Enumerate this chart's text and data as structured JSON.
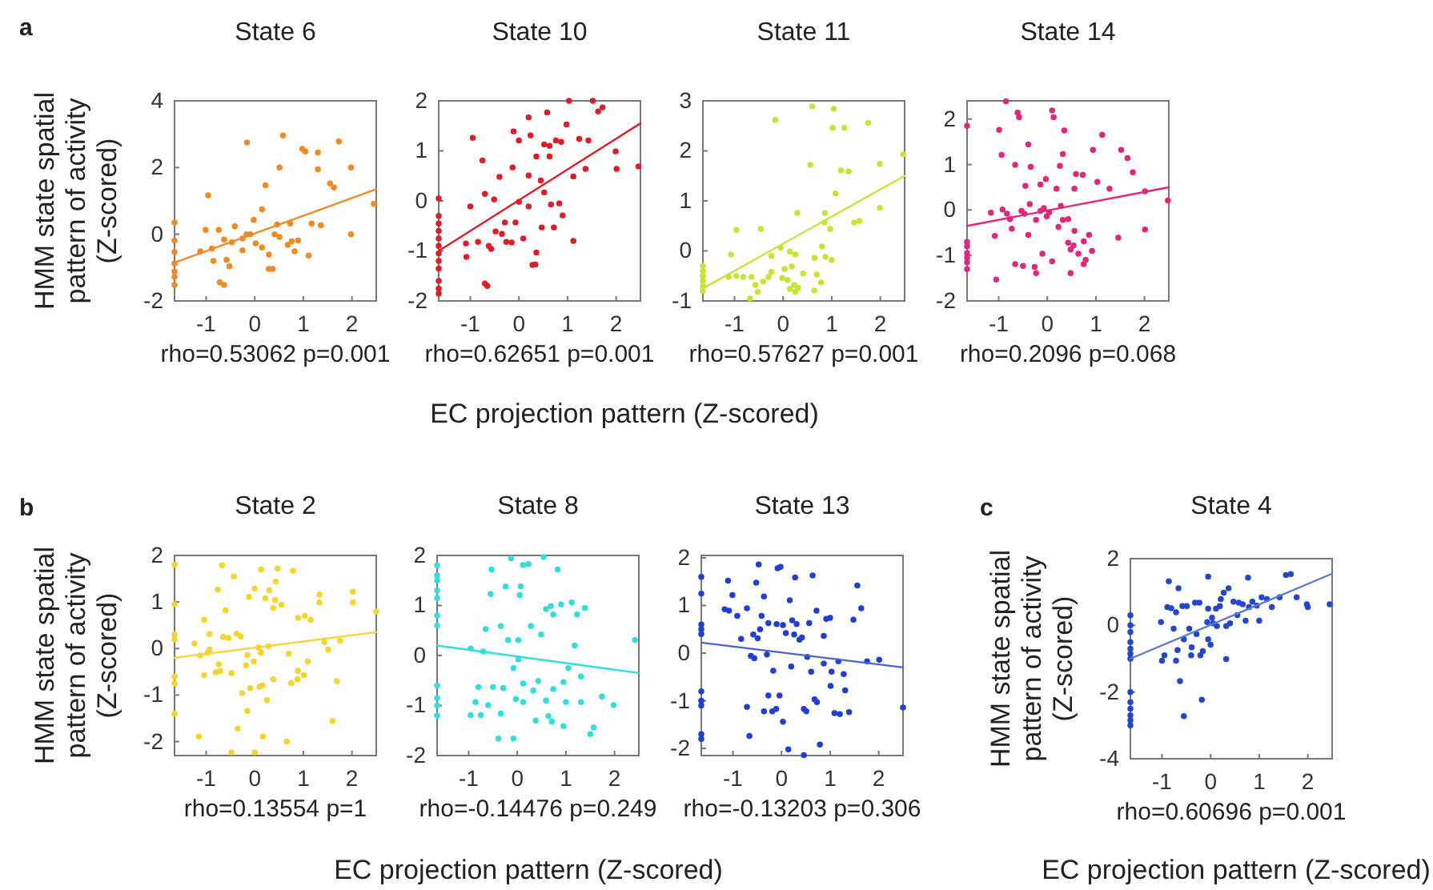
{
  "chart_data": [
    {
      "type": "scatter",
      "title": "State 6",
      "xlabel": "rho=0.53062 p=0.001",
      "ylabel": "HMM state spatial pattern of activity (Z-scored)",
      "annotations": [
        "a",
        "EC projection pattern (Z-scored)"
      ],
      "marker": "circle",
      "xlim": [
        -1.65,
        2.5
      ],
      "xticks": [
        -1,
        0,
        1,
        2
      ],
      "ylim": [
        -2,
        4
      ],
      "yticks": [
        -2,
        0,
        2,
        4
      ],
      "series": [
        {
          "color": "#f08a24",
          "x": [
            -0.16,
            0.58,
            0.98,
            1.04,
            1.3,
            1.73,
            0.51,
            1.3,
            1.98,
            1.55,
            1.63,
            0.22,
            -0.96,
            0.15,
            2.45,
            0.73,
            0.46,
            1.17,
            1.36,
            -0.02,
            -1.01,
            -0.74,
            -0.41,
            -0.17,
            -0.25,
            -0.47,
            -0.63,
            -0.88,
            -1.12,
            -0.85,
            -0.58,
            -0.52,
            0.02,
            0.15,
            0.29,
            0.29,
            0.37,
            0.51,
            0.68,
            0.76,
            0.89,
            0.82,
            1.11,
            1.98,
            -0.25,
            -0.72,
            -0.63,
            0.41,
            -0.09,
            -1.65,
            -1.65,
            -1.65,
            -1.65,
            -1.65,
            -1.65,
            -1.65
          ],
          "values": [
            2.75,
            2.96,
            2.56,
            2.48,
            2.45,
            2.78,
            2.0,
            1.95,
            2.0,
            1.52,
            1.4,
            1.47,
            1.17,
            0.75,
            0.91,
            0.32,
            0.29,
            0.32,
            0.27,
            0.43,
            0.13,
            0.13,
            0.24,
            0,
            -0.13,
            -0.24,
            -0.16,
            -0.43,
            -0.51,
            -0.8,
            -0.77,
            -0.96,
            -0.27,
            -0.4,
            -0.61,
            -1.04,
            -1.04,
            -0.08,
            -0.32,
            -0.21,
            -0.19,
            -0.51,
            -0.64,
            0,
            -0.48,
            -1.44,
            -1.52,
            0,
            0,
            0.35,
            -0.19,
            -0.53,
            -0.88,
            -1.12,
            -1.28,
            -1.52
          ]
        },
        {
          "type": "line",
          "marker": "none",
          "color": "#f08a24",
          "x": [
            -1.65,
            2.5
          ],
          "values": [
            -0.85,
            1.35
          ]
        }
      ]
    },
    {
      "type": "scatter",
      "title": "State 10",
      "xlabel": "rho=0.62651 p=0.001",
      "marker": "circle",
      "xlim": [
        -1.65,
        2.5
      ],
      "xticks": [
        -1,
        0,
        1,
        2
      ],
      "ylim": [
        -2,
        2
      ],
      "yticks": [
        -2,
        -1,
        0,
        1,
        2
      ],
      "series": [
        {
          "color": "#dc1e28",
          "x": [
            -0.95,
            -0.75,
            -0.11,
            0,
            0.2,
            0.58,
            1.03,
            1.52,
            1.72,
            1.63,
            0.98,
            0.52,
            0.63,
            0.76,
            0.87,
            1.24,
            1.43,
            0.24,
            0.36,
            0.2,
            -0.13,
            -0.4,
            -0.7,
            -0.51,
            -1,
            0.45,
            0.63,
            1.12,
            1.37,
            1.99,
            2.01,
            2.46,
            0.2,
            0.52,
            0.66,
            0.83,
            0.9,
            0.47,
            0.72,
            0.09,
            -0.07,
            -0.29,
            -0.35,
            -0.48,
            -0.26,
            -0.15,
            -0.62,
            -0.84,
            -1.09,
            -1.08,
            -0.57,
            0.36,
            0.28,
            0.34,
            1.12,
            -0.7,
            -0.65,
            0,
            -1.65,
            -1.65,
            -1.65,
            -1.65,
            -1.65,
            -1.65,
            -1.65,
            -1.65,
            -1.65,
            -1.65,
            -1.65,
            -1.65
          ],
          "values": [
            1.26,
            0.81,
            1.39,
            1.21,
            1.67,
            1.77,
            2.0,
            2.0,
            1.87,
            1.79,
            1.53,
            1.13,
            1.1,
            1.21,
            1.18,
            1.24,
            1.21,
            1.31,
            0.89,
            0.51,
            0.67,
            0.48,
            0.14,
            0.03,
            -0.11,
            0.41,
            0.89,
            0.49,
            0.64,
            0.99,
            0.64,
            0.69,
            -0.11,
            0.17,
            -0.07,
            -0.05,
            -0.29,
            -0.53,
            -0.53,
            -0.75,
            -0.43,
            -0.43,
            -0.66,
            -0.61,
            -0.82,
            -0.83,
            -0.9,
            -0.82,
            -0.85,
            -1.12,
            -0.96,
            -1.03,
            -1.28,
            -1.27,
            -0.8,
            -1.65,
            -1.7,
            -0.02,
            0.05,
            -0.3,
            -0.45,
            -0.6,
            -0.75,
            -0.9,
            -1.05,
            -1.2,
            -1.35,
            -1.6,
            -1.75,
            -1.85
          ]
        },
        {
          "type": "line",
          "marker": "none",
          "color": "#dc1e28",
          "x": [
            -1.65,
            2.5
          ],
          "values": [
            -1.0,
            1.55
          ]
        }
      ]
    },
    {
      "type": "scatter",
      "title": "State 11",
      "xlabel": "rho=0.57627 p=0.001",
      "marker": "circle",
      "xlim": [
        -1.65,
        2.5
      ],
      "xticks": [
        -1,
        0,
        1,
        2
      ],
      "ylim": [
        -1,
        3
      ],
      "yticks": [
        -1,
        0,
        1,
        2,
        3
      ],
      "series": [
        {
          "color": "#c5e536",
          "x": [
            -0.16,
            0.6,
            1.04,
            1.02,
            1.26,
            1.75,
            0.56,
            1.19,
            1.35,
            1.08,
            1.99,
            2.47,
            1.99,
            0.86,
            0.85,
            1.46,
            1.57,
            0.97,
            -0.96,
            -0.46,
            0.29,
            -0.05,
            0.8,
            0.87,
            1.0,
            0.65,
            0.14,
            0.25,
            -0.24,
            -1.07,
            0.18,
            0.41,
            0.69,
            0.78,
            0.64,
            0.31,
            0.25,
            0.09,
            -0.02,
            -0.3,
            -0.24,
            -0.41,
            -0.57,
            -0.82,
            -0.96,
            -1.12,
            -0.65,
            -0.52,
            -0.68,
            0.23,
            0.14,
            0.03,
            -1.65,
            -1.65,
            -1.65,
            -1.65,
            -1.65,
            -1.65
          ],
          "values": [
            2.62,
            2.89,
            2.84,
            2.46,
            2.46,
            2.56,
            1.72,
            1.61,
            1.59,
            1.15,
            1.74,
            1.93,
            0.86,
            0.76,
            0.57,
            0.57,
            0.6,
            0.44,
            0.42,
            0.44,
            0.76,
            0.06,
            0.09,
            -0.12,
            -0.18,
            -0.14,
            -0.01,
            -0.07,
            -0.1,
            -0.07,
            -0.31,
            -0.45,
            -0.47,
            -0.63,
            -0.79,
            -0.74,
            -0.82,
            -0.58,
            -0.54,
            -0.52,
            -0.42,
            -0.61,
            -0.68,
            -0.52,
            -0.5,
            -0.52,
            -0.52,
            -0.82,
            -0.95,
            -0.68,
            -0.76,
            -0.36,
            -0.3,
            -0.4,
            -0.5,
            -0.6,
            -0.7,
            -0.8
          ]
        },
        {
          "type": "line",
          "marker": "none",
          "color": "#c5e536",
          "x": [
            -1.65,
            2.5
          ],
          "values": [
            -0.75,
            1.5
          ]
        }
      ]
    },
    {
      "type": "scatter",
      "title": "State 14",
      "xlabel": "rho=0.2096 p=0.068",
      "marker": "circle",
      "xlim": [
        -1.65,
        2.5
      ],
      "xticks": [
        -1,
        0,
        1,
        2
      ],
      "ylim": [
        -2,
        2.4
      ],
      "yticks": [
        -2,
        -1,
        0,
        1,
        2
      ],
      "series": [
        {
          "color": "#e0287a",
          "x": [
            -0.85,
            -0.61,
            -0.58,
            0.1,
            0.13,
            -0.99,
            0.35,
            1.13,
            -0.39,
            -0.94,
            0.32,
            -0.66,
            -0.34,
            0.26,
            1.52,
            1.65,
            0.94,
            1.76,
            0.59,
            0.73,
            -0.03,
            -0.14,
            -0.45,
            1.03,
            0.56,
            0.19,
            1.28,
            2.01,
            2.48,
            -0.36,
            -0.92,
            -0.83,
            -1.16,
            -0.77,
            -0.53,
            -0.47,
            -0.14,
            -0.07,
            0.04,
            -0.01,
            -0.23,
            0.28,
            0.32,
            0.43,
            0.23,
            0.56,
            -1.08,
            -0.73,
            -0.39,
            0.86,
            0.75,
            0.43,
            0.54,
            0.64,
            0.48,
            1.46,
            2.01,
            -0.1,
            0.1,
            -0.66,
            -0.5,
            -0.26,
            -0.23,
            0.48,
            0.79,
            0.75,
            0.92,
            -1.05,
            -1.65,
            -1.65,
            -1.65,
            -1.65,
            -1.65,
            -1.65,
            -1.65
          ],
          "values": [
            2.39,
            2.14,
            2.04,
            2.19,
            2.04,
            1.76,
            1.75,
            1.65,
            1.44,
            1.21,
            1.23,
            0.99,
            0.95,
            0.97,
            1.32,
            1.14,
            1.32,
            0.83,
            0.79,
            0.77,
            0.68,
            0.56,
            0.53,
            0.62,
            0.47,
            0.47,
            0.47,
            0.41,
            0.21,
            0.13,
            0.01,
            -0.08,
            -0.06,
            -0.2,
            -0.02,
            -0.08,
            -0.02,
            0.04,
            -0.05,
            -0.14,
            -0.22,
            0.09,
            -0.22,
            -0.2,
            -0.37,
            -0.46,
            -0.57,
            -0.41,
            -0.55,
            -0.55,
            -0.69,
            -0.72,
            -0.78,
            -0.96,
            -0.87,
            -0.61,
            -0.43,
            -0.96,
            -1.13,
            -1.19,
            -1.23,
            -1.25,
            -1.39,
            -1.39,
            -1.1,
            -1.19,
            -0.9,
            -1.53,
            1.85,
            -0.7,
            -0.8,
            -0.95,
            -1.05,
            -1.15,
            -1.3
          ]
        },
        {
          "type": "line",
          "marker": "none",
          "color": "#e0287a",
          "x": [
            -1.65,
            2.5
          ],
          "values": [
            -0.35,
            0.5
          ]
        }
      ]
    },
    {
      "type": "scatter",
      "title": "State 2",
      "xlabel": "rho=0.13554 p=1",
      "ylabel": "HMM state spatial pattern of activity (Z-scored)",
      "annotations": [
        "b",
        "EC projection pattern (Z-scored)"
      ],
      "marker": "circle",
      "xlim": [
        -1.65,
        2.5
      ],
      "xticks": [
        -1,
        0,
        1,
        2
      ],
      "ylim": [
        -2.3,
        2
      ],
      "yticks": [
        -2,
        -1,
        0,
        1,
        2
      ],
      "series": [
        {
          "color": "#f5d42e",
          "x": [
            -0.67,
            -0.43,
            0.13,
            0.47,
            0.79,
            0.43,
            0.3,
            0,
            0.22,
            0.42,
            0.55,
            0.38,
            -0.12,
            -0.76,
            -0.6,
            -1.04,
            -0.93,
            -0.65,
            -0.54,
            -0.37,
            -0.29,
            -1.24,
            -0.93,
            -0.97,
            -1.12,
            -0.74,
            -0.8,
            -1.04,
            -0.71,
            -0.48,
            -0.15,
            -0.02,
            0.08,
            0.13,
            0.28,
            -0.18,
            -0.26,
            -0.09,
            0.1,
            0.16,
            0.38,
            0.25,
            -0.15,
            0.75,
            0.88,
            1.01,
            1.09,
            0.7,
            0.89,
            1.03,
            1.15,
            1.33,
            1.33,
            1.43,
            1.51,
            1.69,
            1.6,
            2.02,
            2.02,
            1.76,
            2.5,
            -1.15,
            -0.35,
            -0.48,
            0,
            0.66,
            0.17,
            0.89,
            -1.65,
            -1.65,
            -1.65,
            -1.65,
            -1.65,
            -1.65,
            -1.65
          ],
          "values": [
            1.79,
            1.55,
            1.7,
            1.72,
            1.67,
            1.44,
            1.25,
            1.29,
            1.08,
            1.04,
            0.94,
            0.87,
            1.11,
            1.27,
            0.82,
            0.62,
            0.31,
            0.25,
            0.23,
            0.32,
            0.26,
            0.11,
            -0.02,
            -0.09,
            -0.15,
            -0.34,
            -0.51,
            -0.57,
            -0.48,
            -0.53,
            -0.14,
            -0.28,
            0.02,
            -0.09,
            0.05,
            -0.36,
            -0.96,
            -0.85,
            -0.82,
            -0.79,
            -0.66,
            -1.11,
            -1.34,
            -0.74,
            -0.66,
            -0.57,
            -0.28,
            -0.11,
            0.66,
            0.7,
            0.62,
            1.16,
            0.99,
            0.14,
            -0.02,
            -0.7,
            -1.56,
            1.22,
            0.99,
            0.17,
            0.79,
            -1.89,
            -1.72,
            -2.23,
            -2.23,
            -2.0,
            -1.89,
            -0.48,
            1.8,
            0.95,
            0.3,
            0.2,
            -0.6,
            -0.75,
            -1.4
          ]
        },
        {
          "type": "line",
          "marker": "none",
          "color": "#f5d42e",
          "x": [
            -1.65,
            2.5
          ],
          "values": [
            -0.2,
            0.35
          ]
        }
      ]
    },
    {
      "type": "scatter",
      "title": "State 8",
      "xlabel": "rho=-0.14476 p=0.249",
      "marker": "circle",
      "xlim": [
        -1.65,
        2.5
      ],
      "xticks": [
        -1,
        0,
        1,
        2
      ],
      "ylim": [
        -2,
        2
      ],
      "yticks": [
        -2,
        -1,
        0,
        1,
        2
      ],
      "series": [
        {
          "color": "#35dcdc",
          "x": [
            0.23,
            0.54,
            0.07,
            0.83,
            0.59,
            0.74,
            0.9,
            1.12,
            1.39,
            1.23,
            0.49,
            0.28,
            1.18,
            0.02,
            2.42,
            1.05,
            1.31,
            0.95,
            0.74,
            0.43,
            0.33,
            0.12,
            0.59,
            0.12,
            0.38,
            0.64,
            0.71,
            0.95,
            1.0,
            1.31,
            1.74,
            1.98,
            1.57,
            1.5,
            0.69,
            -0.55,
            -0.24,
            0.05,
            -0.13,
            0.12,
            -0.53,
            -0.65,
            -0.34,
            -0.7,
            -0.19,
            0.02,
            -0.08,
            -0.8,
            -0.5,
            -0.29,
            -0.86,
            -0.6,
            -0.96,
            -0.75,
            -0.34,
            -0.08,
            -0.39,
            -0.03,
            -0.96,
            -1.65,
            -1.65,
            -1.65,
            -1.65,
            -1.65,
            -1.65,
            -1.65,
            -1.65,
            -1.65,
            -1.65,
            -1.65
          ],
          "values": [
            1.83,
            1.97,
            1.38,
            1.72,
            0.93,
            0.82,
            1.02,
            1.06,
            0.95,
            0.82,
            0.42,
            0.59,
            0.2,
            0.31,
            0.31,
            -0.25,
            -0.42,
            -0.53,
            -0.67,
            -0.51,
            -0.7,
            -0.56,
            -0.9,
            -0.93,
            -1.3,
            -1.21,
            -1.32,
            -1.41,
            -0.93,
            -0.93,
            -0.82,
            -0.99,
            -1.44,
            -1.57,
            0.99,
            1.23,
            1.38,
            1.21,
            1.94,
            1.81,
            1.72,
            0.53,
            0.59,
            0.08,
            0.31,
            -0.08,
            -0.25,
            -0.63,
            -0.63,
            -0.65,
            -0.93,
            -0.99,
            -1.19,
            -1.19,
            -1.16,
            -1.66,
            -1.66,
            -0.87,
            0.14,
            1.8,
            1.6,
            1.5,
            1.3,
            1.15,
            0.8,
            0.6,
            -0.6,
            -0.85,
            -1.0,
            -1.2
          ]
        },
        {
          "type": "line",
          "marker": "none",
          "color": "#35dcdc",
          "x": [
            -1.65,
            2.5
          ],
          "values": [
            0.2,
            -0.35
          ]
        }
      ]
    },
    {
      "type": "scatter",
      "title": "State 13",
      "xlabel": "rho=-0.13203 p=0.306",
      "marker": "circle",
      "xlim": [
        -1.65,
        2.5
      ],
      "xticks": [
        -1,
        0,
        1,
        2
      ],
      "ylim": [
        -2.15,
        2.05
      ],
      "yticks": [
        -2,
        -1,
        0,
        1,
        2
      ],
      "series": [
        {
          "color": "#1f3fcf",
          "x": [
            -0.47,
            -0.08,
            -0.02,
            0.64,
            0.28,
            -1.1,
            -0.52,
            -1.01,
            -0.36,
            0.17,
            1.56,
            1.64,
            -1.17,
            -1.08,
            -0.91,
            -0.71,
            -0.41,
            -0.27,
            -0.1,
            0.03,
            0.09,
            0.22,
            0.31,
            0.57,
            0.72,
            0.92,
            1.0,
            1.48,
            0.87,
            0.26,
            0.42,
            0.37,
            -0.83,
            -0.58,
            -0.49,
            -0.44,
            -0.63,
            -0.56,
            -0.3,
            0.2,
            -0.17,
            0.53,
            0.61,
            0.87,
            1.03,
            1.17,
            1.28,
            1.76,
            2.01,
            1.01,
            1.31,
            0.68,
            0.73,
            -0.27,
            -0.04,
            -0.71,
            -0.36,
            -0.19,
            -0.11,
            0.03,
            0.46,
            0.51,
            1.09,
            1.2,
            1.39,
            2.5,
            -0.66,
            0.14,
            0.46,
            0.79,
            -1.65,
            -1.65,
            -1.65,
            -1.65,
            -1.65,
            -1.65,
            -1.65,
            -1.65,
            -1.65,
            -1.65
          ],
          "values": [
            1.86,
            1.78,
            1.81,
            1.63,
            1.59,
            1.52,
            1.48,
            1.22,
            1.19,
            1.11,
            1.42,
            0.94,
            0.92,
            0.89,
            0.78,
            0.94,
            0.78,
            0.63,
            0.61,
            0.59,
            0.42,
            0.69,
            0.61,
            0.63,
            0.89,
            0.72,
            0.74,
            0.7,
            0.36,
            0.39,
            0.33,
            0.28,
            0.3,
            0.39,
            0.31,
            0.5,
            -0.06,
            -0.11,
            -0.03,
            -0.28,
            -0.37,
            -0.08,
            -0.39,
            -0.22,
            -0.39,
            -0.17,
            -0.44,
            -0.17,
            -0.14,
            -0.69,
            -0.78,
            -0.97,
            -1.03,
            -0.89,
            -0.89,
            -1.13,
            -1.22,
            -1.22,
            -1.17,
            -1.44,
            -1.17,
            -1.22,
            -1.26,
            -1.28,
            -1.24,
            -1.14,
            -1.74,
            -2.02,
            -2.14,
            -1.92,
            1.6,
            1.25,
            0.6,
            0.5,
            0.4,
            -0.8,
            -1.0,
            -1.1,
            -1.7,
            -1.8
          ]
        },
        {
          "type": "line",
          "marker": "none",
          "color": "#4a62d0",
          "x": [
            -1.65,
            2.5
          ],
          "values": [
            0.22,
            -0.3
          ]
        }
      ]
    },
    {
      "type": "scatter",
      "title": "State 4",
      "xlabel": "rho=0.60696 p=0.001",
      "ylabel": "HMM state spatial pattern of activity (Z-scored)",
      "annotations": [
        "c",
        "EC projection pattern (Z-scored)"
      ],
      "marker": "circle",
      "xlim": [
        -1.65,
        2.5
      ],
      "xticks": [
        -1,
        0,
        1,
        2
      ],
      "ylim": [
        -4,
        2
      ],
      "yticks": [
        -4,
        -2,
        0,
        2
      ],
      "series": [
        {
          "color": "#2347cc",
          "x": [
            -0.86,
            -0.66,
            -0.05,
            0.77,
            1.55,
            1.65,
            0.27,
            0.21,
            0.37,
            -0.89,
            -0.81,
            -0.71,
            -0.58,
            -0.49,
            -0.32,
            -0.23,
            -0.05,
            0.11,
            0.19,
            0.47,
            0.58,
            0.66,
            0.86,
            0.95,
            1.05,
            1.16,
            1.26,
            1.42,
            1.77,
            1.98,
            2.0,
            2.45,
            0.79,
            0.55,
            0.72,
            1.0,
            0.4,
            0.03,
            0.05,
            0.13,
            -0.07,
            0.32,
            -1.02,
            -0.76,
            -0.44,
            -0.29,
            -0.55,
            -0.39,
            -0.05,
            0,
            -0.4,
            -0.21,
            -0.16,
            -0.68,
            -1.0,
            -0.71,
            0.32,
            -0.95,
            -0.63,
            -0.18,
            -0.55,
            -1.65,
            -1.65,
            -1.65,
            -1.65,
            -1.65,
            -1.65,
            -1.65,
            -1.65,
            -1.65,
            -1.65,
            -1.65,
            -1.65,
            -1.65
          ],
          "values": [
            1.32,
            1.11,
            1.46,
            1.43,
            1.51,
            1.54,
            0.98,
            0.79,
            1.11,
            0.55,
            0.51,
            0.39,
            0.58,
            0.58,
            0.68,
            0.68,
            0.5,
            0.5,
            0.58,
            0.71,
            0.68,
            0.63,
            0.71,
            0.59,
            0.84,
            0.79,
            0.55,
            0.84,
            0.84,
            0.63,
            0.55,
            0.63,
            0.55,
            0.31,
            0.14,
            0.14,
            0.06,
            0.23,
            0.06,
            -0.02,
            0.1,
            -0.02,
            0.1,
            -0.1,
            -0.1,
            -0.26,
            -0.42,
            -0.66,
            -0.42,
            -0.58,
            -0.9,
            -0.9,
            -0.77,
            -0.74,
            -1.06,
            -1.06,
            -1.01,
            -0.9,
            -1.67,
            -2.23,
            -2.72,
            0.3,
            0,
            -0.2,
            -0.5,
            -0.7,
            -0.85,
            -1.0,
            -2.0,
            -2.3,
            -2.5,
            -2.7,
            -2.85,
            -3.0
          ]
        },
        {
          "type": "line",
          "marker": "none",
          "color": "#5a78d6",
          "x": [
            -1.65,
            2.5
          ],
          "values": [
            -1.0,
            1.55
          ]
        }
      ]
    }
  ]
}
